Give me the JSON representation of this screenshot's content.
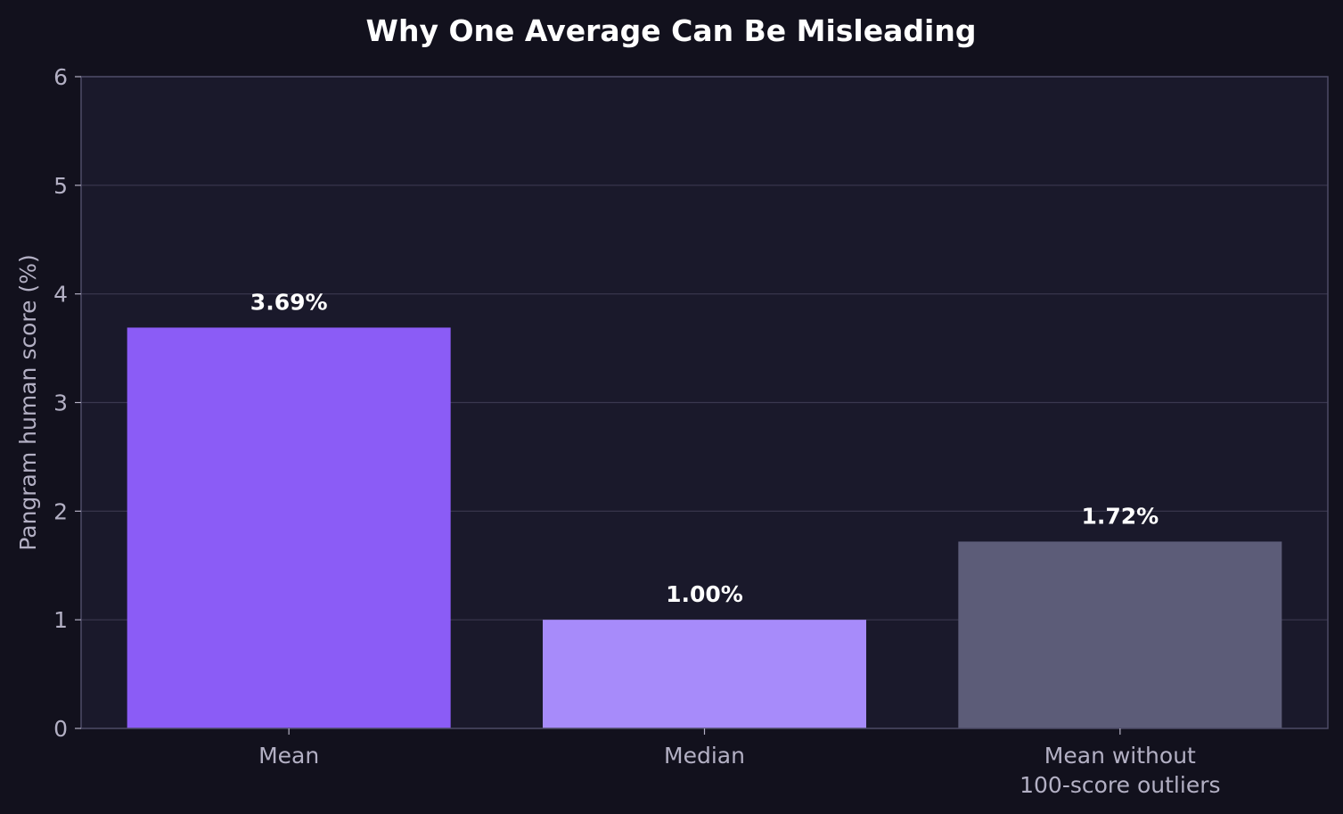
{
  "chart_data": {
    "type": "bar",
    "title": "Why One Average Can Be Misleading",
    "xlabel": "",
    "ylabel": "Pangram human score (%)",
    "categories": [
      [
        "Mean"
      ],
      [
        "Median"
      ],
      [
        "Mean without",
        "100-score outliers"
      ]
    ],
    "values": [
      3.69,
      1.0,
      1.72
    ],
    "value_labels": [
      "3.69%",
      "1.00%",
      "1.72%"
    ],
    "bar_colors": [
      "#8b5cf6",
      "#a78bfa",
      "#5c5c78"
    ],
    "ylim": [
      0,
      6
    ],
    "yticks": [
      "0",
      "1",
      "2",
      "3",
      "4",
      "5",
      "6"
    ],
    "grid": true,
    "colors": {
      "page_background": "#12111d",
      "plot_background": "#1a192b",
      "axis": "#4d4b66",
      "grid": "#3a384f",
      "text": "#b3b0c4",
      "title": "#ffffff",
      "value_label": "#ffffff"
    }
  }
}
